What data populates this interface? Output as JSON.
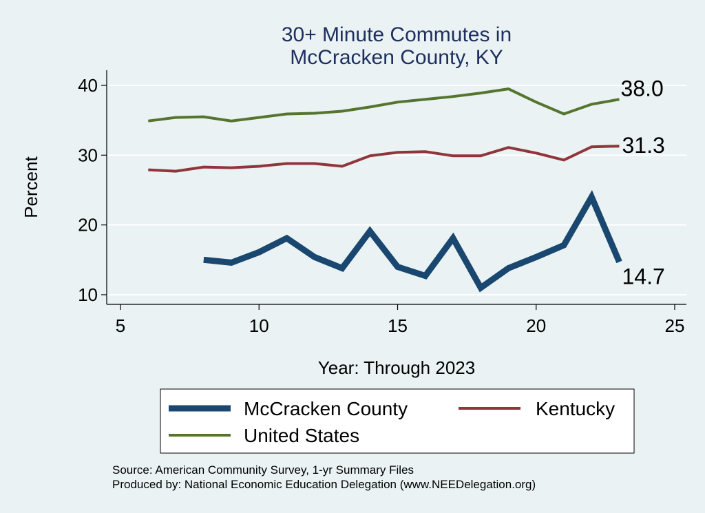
{
  "chart_data": {
    "type": "line",
    "title": [
      "30+ Minute Commutes in",
      "McCracken County, KY"
    ],
    "xlabel": "Year: Through 2023",
    "ylabel": "Percent",
    "xlim": [
      5,
      25
    ],
    "ylim": [
      10,
      40
    ],
    "x_ticks": [
      "5",
      "10",
      "15",
      "20",
      "25"
    ],
    "y_ticks": [
      "10",
      "20",
      "30",
      "40"
    ],
    "grid": "horizontal",
    "legend_placement": "bottom",
    "series": [
      {
        "name": "McCracken County",
        "color": "#1a476f",
        "points": [
          [
            8,
            15.0
          ],
          [
            9,
            14.6
          ],
          [
            10,
            16.1
          ],
          [
            11,
            18.1
          ],
          [
            12,
            15.4
          ],
          [
            13,
            13.8
          ],
          [
            14,
            19.1
          ],
          [
            15,
            14.0
          ],
          [
            16,
            12.7
          ],
          [
            17,
            18.1
          ],
          [
            18,
            11.0
          ],
          [
            19,
            13.8
          ],
          [
            20,
            15.4
          ],
          [
            21,
            17.1
          ],
          [
            22,
            24.0
          ],
          [
            23,
            14.7
          ]
        ],
        "end_label": "14.7"
      },
      {
        "name": "Kentucky",
        "color": "#90353b",
        "points": [
          [
            6,
            27.9
          ],
          [
            7,
            27.7
          ],
          [
            8,
            28.3
          ],
          [
            9,
            28.2
          ],
          [
            10,
            28.4
          ],
          [
            11,
            28.8
          ],
          [
            12,
            28.8
          ],
          [
            13,
            28.4
          ],
          [
            14,
            29.9
          ],
          [
            15,
            30.4
          ],
          [
            16,
            30.5
          ],
          [
            17,
            29.9
          ],
          [
            18,
            29.9
          ],
          [
            19,
            31.1
          ],
          [
            20,
            30.3
          ],
          [
            21,
            29.3
          ],
          [
            22,
            31.2
          ],
          [
            23,
            31.3
          ]
        ],
        "end_label": "31.3"
      },
      {
        "name": "United States",
        "color": "#55752f",
        "points": [
          [
            6,
            34.9
          ],
          [
            7,
            35.4
          ],
          [
            8,
            35.5
          ],
          [
            9,
            34.9
          ],
          [
            10,
            35.4
          ],
          [
            11,
            35.9
          ],
          [
            12,
            36.0
          ],
          [
            13,
            36.3
          ],
          [
            14,
            36.9
          ],
          [
            15,
            37.6
          ],
          [
            16,
            38.0
          ],
          [
            17,
            38.4
          ],
          [
            18,
            38.9
          ],
          [
            19,
            39.5
          ],
          [
            20,
            37.6
          ],
          [
            21,
            35.9
          ],
          [
            22,
            37.3
          ],
          [
            23,
            38.0
          ]
        ],
        "end_label": "38.0"
      }
    ],
    "notes": [
      "Source: American Community Survey, 1-yr Summary Files",
      "Produced by: National Economic Education Delegation (www.NEEDelegation.org)"
    ]
  }
}
